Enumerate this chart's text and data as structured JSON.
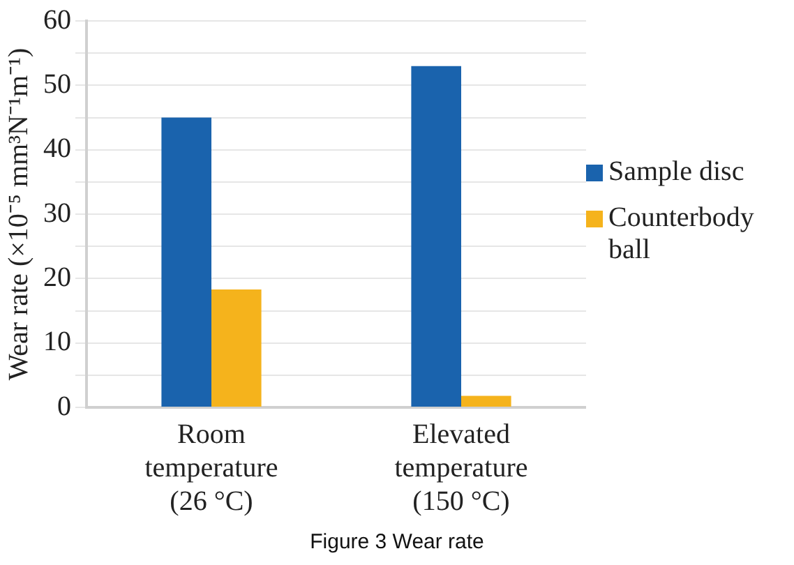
{
  "chart_data": {
    "type": "bar",
    "ylabel": "Wear rate (×10⁻⁵ mm³N⁻¹m⁻¹)",
    "annotations": [
      "Figure 3 Wear rate"
    ],
    "categories": [
      "Room temperature (26 °C)",
      "Elevated temperature (150 °C)"
    ],
    "series": [
      {
        "name": "Sample disc",
        "color": "#1a63ad",
        "values": [
          45,
          53
        ]
      },
      {
        "name": "Counterbody ball",
        "color": "#f5b31c",
        "values": [
          18.3,
          1.8
        ]
      }
    ],
    "ylim": [
      0,
      60
    ],
    "yticks": [
      0,
      {
        "value": 5,
        "label": null
      },
      10,
      {
        "value": 15,
        "label": null
      },
      20,
      {
        "value": 25,
        "label": null
      },
      30,
      {
        "value": 35,
        "label": null
      },
      40,
      {
        "value": 45,
        "label": null
      },
      50,
      {
        "value": 55,
        "label": null
      },
      60
    ],
    "grid": "y",
    "legend": "right"
  }
}
